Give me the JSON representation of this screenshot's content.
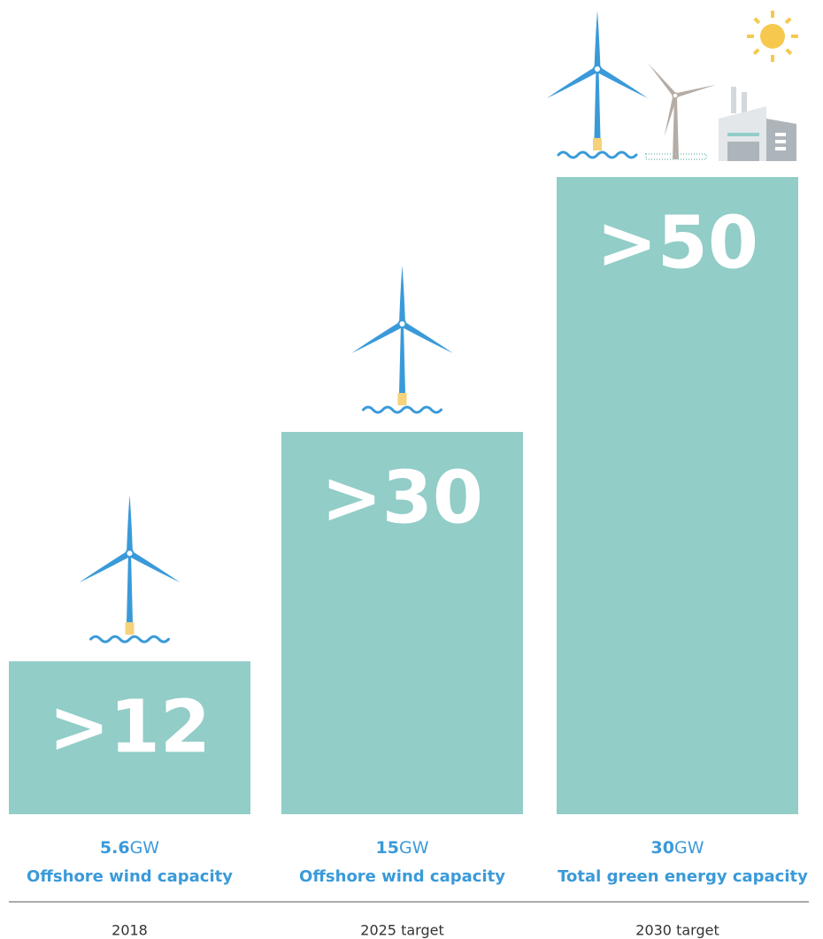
{
  "chart_data": {
    "type": "bar",
    "categories": [
      "2018",
      "2025 target",
      "2030 target"
    ],
    "values": [
      12,
      30,
      50
    ],
    "value_labels": [
      ">12",
      ">30",
      ">50"
    ],
    "capacity_values": [
      5.6,
      15,
      30
    ],
    "capacity_unit": "GW",
    "captions": [
      "Offshore wind capacity",
      "Offshore wind capacity",
      "Total green energy capacity"
    ],
    "color": "#92cdc8"
  }
}
